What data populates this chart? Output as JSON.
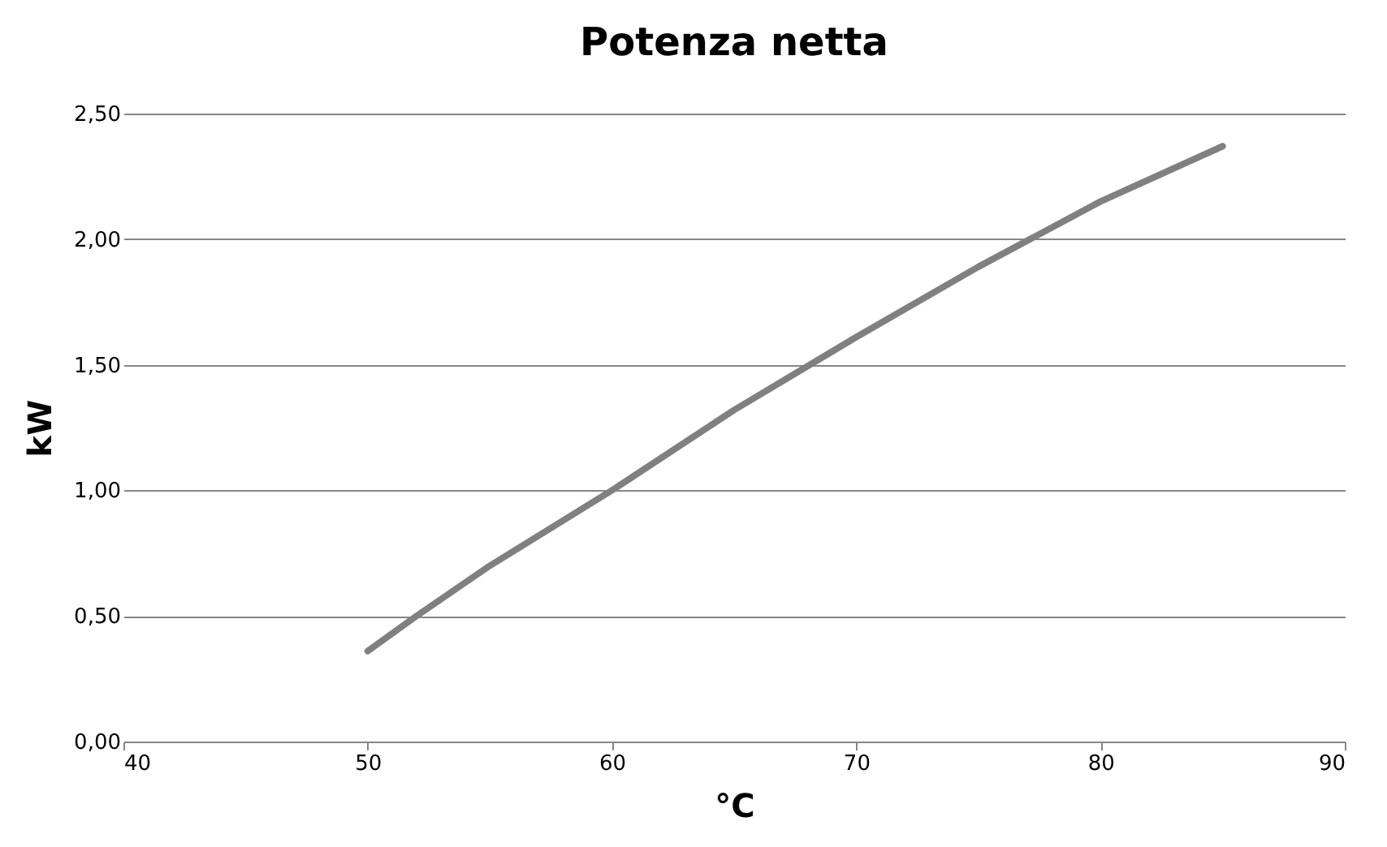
{
  "chart_data": {
    "type": "line",
    "title": "Potenza netta",
    "xlabel": "°C",
    "ylabel": "kW",
    "x": [
      50,
      52,
      55,
      60,
      65,
      70,
      75,
      80,
      85
    ],
    "series": [
      {
        "color": "#808080",
        "values": [
          0.36,
          0.5,
          0.7,
          1.0,
          1.32,
          1.61,
          1.89,
          2.15,
          2.37
        ]
      }
    ],
    "xlim": [
      40,
      90
    ],
    "xticks": [
      40,
      50,
      60,
      70,
      80,
      90
    ],
    "ylim": [
      0,
      2.5
    ],
    "yticks": [
      {
        "value": 0,
        "label": "0,00"
      },
      {
        "value": 0.5,
        "label": "0,50"
      },
      {
        "value": 1,
        "label": "1,00"
      },
      {
        "value": 1.5,
        "label": "1,50"
      },
      {
        "value": 2,
        "label": "2,00"
      },
      {
        "value": 2.5,
        "label": "2,50"
      }
    ],
    "grid": "y",
    "marker": "none",
    "line_style": "solid"
  }
}
